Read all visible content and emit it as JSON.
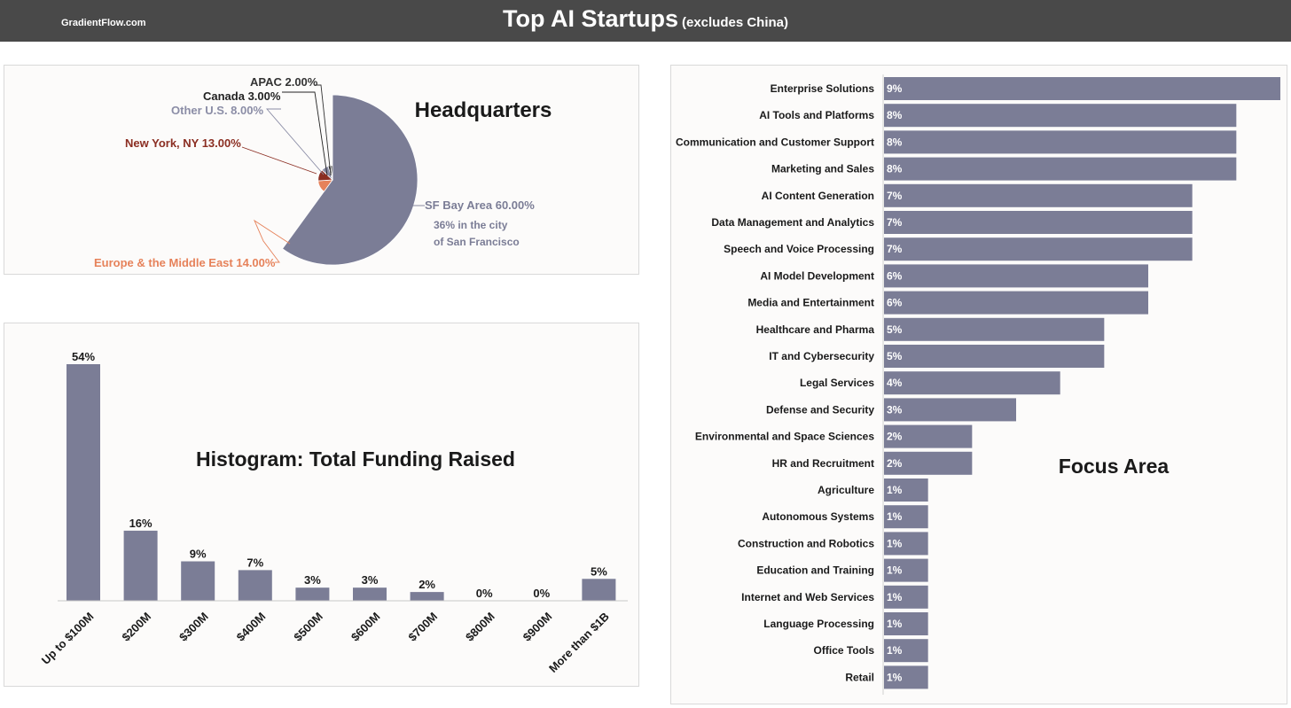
{
  "header": {
    "site": "GradientFlow.com",
    "title": "Top AI Startups",
    "subtitle": "(excludes China)"
  },
  "colors": {
    "bar": "#7b7d96",
    "header_bg": "#494949",
    "sf": "#7b7d96",
    "europe": "#e6825a",
    "newyork": "#8b2e22",
    "other_us": "#8b8da6",
    "canada": "#222222",
    "apac": "#333333"
  },
  "chart_data": [
    {
      "type": "pie",
      "title": "Headquarters",
      "labels": [
        "SF Bay Area",
        "Europe & the Middle East",
        "New York, NY",
        "Other U.S.",
        "Canada",
        "APAC"
      ],
      "display_labels": [
        "SF Bay Area 60.00%",
        "Europe & the Middle East 14.00%",
        "New York, NY 13.00%",
        "Other U.S. 8.00%",
        "Canada 3.00%",
        "APAC 2.00%"
      ],
      "values": [
        60,
        14,
        13,
        8,
        3,
        2
      ],
      "annotations": [
        "36% in the city",
        "of San Francisco"
      ]
    },
    {
      "type": "bar",
      "title": "Histogram: Total Funding Raised",
      "categories": [
        "Up to $100M",
        "$200M",
        "$300M",
        "$400M",
        "$500M",
        "$600M",
        "$700M",
        "$800M",
        "$900M",
        "More than $1B"
      ],
      "values": [
        54,
        16,
        9,
        7,
        3,
        3,
        2,
        0,
        0,
        5
      ],
      "data_labels": [
        "54%",
        "16%",
        "9%",
        "7%",
        "3%",
        "3%",
        "2%",
        "0%",
        "0%",
        "5%"
      ],
      "ylim": [
        0,
        54
      ]
    },
    {
      "type": "bar",
      "orientation": "horizontal",
      "title": "Focus Area",
      "categories": [
        "Enterprise Solutions",
        "AI Tools and Platforms",
        "Communication and Customer Support",
        "Marketing and Sales",
        "AI Content Generation",
        "Data Management and Analytics",
        "Speech and Voice Processing",
        "AI Model Development",
        "Media and Entertainment",
        "Healthcare and Pharma",
        "IT and Cybersecurity",
        "Legal Services",
        "Defense and Security",
        "Environmental and Space Sciences",
        "HR and Recruitment",
        "Agriculture",
        "Autonomous Systems",
        "Construction and Robotics",
        "Education and Training",
        "Internet and Web Services",
        "Language Processing",
        "Office Tools",
        "Retail"
      ],
      "values": [
        9,
        8,
        8,
        8,
        7,
        7,
        7,
        6,
        6,
        5,
        5,
        4,
        3,
        2,
        2,
        1,
        1,
        1,
        1,
        1,
        1,
        1,
        1
      ],
      "data_labels": [
        "9%",
        "8%",
        "8%",
        "8%",
        "7%",
        "7%",
        "7%",
        "6%",
        "6%",
        "5%",
        "5%",
        "4%",
        "3%",
        "2%",
        "2%",
        "1%",
        "1%",
        "1%",
        "1%",
        "1%",
        "1%",
        "1%",
        "1%"
      ],
      "xlim": [
        0,
        9
      ]
    }
  ]
}
